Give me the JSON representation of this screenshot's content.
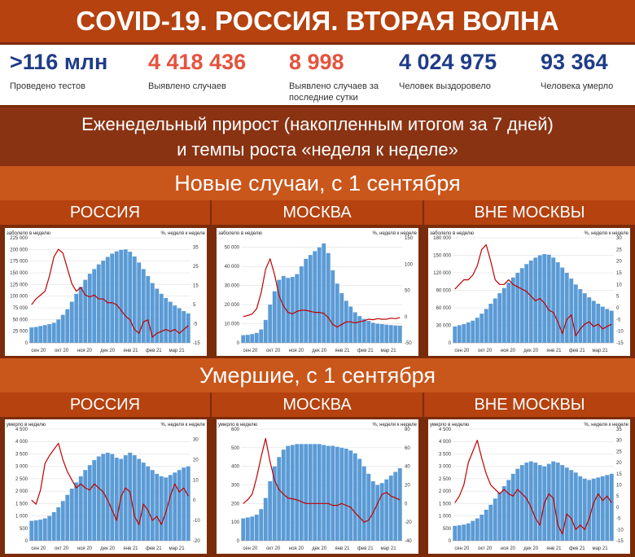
{
  "title": "COVID-19. РОССИЯ. ВТОРАЯ ВОЛНА",
  "stats": [
    {
      "value": ">116 млн",
      "label": "Проведено тестов",
      "color": "#1f3c88"
    },
    {
      "value": "4 418 436",
      "label": "Выявлено случаев",
      "color": "#e5533d"
    },
    {
      "value": "8 998",
      "label": "Выявлено случаев за последние сутки",
      "color": "#e5533d"
    },
    {
      "value": "4 024 975",
      "label": "Человек выздоровело",
      "color": "#1f3c88"
    },
    {
      "value": "93 364",
      "label": "Человека умерло",
      "color": "#1f3c88"
    }
  ],
  "weekly_line1": "Еженедельный прирост (накопленным итогом за 7 дней)",
  "weekly_line2": "и темпы роста «неделя к неделе»",
  "section_new": "Новые случаи, с 1 сентября",
  "section_deaths": "Умершие, с 1 сентября",
  "regions": [
    "РОССИЯ",
    "МОСКВА",
    "ВНЕ МОСКВЫ"
  ],
  "colors": {
    "bars": "#5b9bd5",
    "line": "#c00000"
  },
  "chart_data": [
    {
      "type": "bar+line",
      "region": "РОССИЯ",
      "metric": "Новые случаи",
      "left_axis_label": "заболело в неделю",
      "right_axis_label": "%, неделя к неделе",
      "x_labels": [
        "сен 20",
        "окт 20",
        "ноя 20",
        "дек 20",
        "янв 21",
        "фев 21",
        "мар 21"
      ],
      "left_ticks": [
        "0",
        "25 000",
        "50 000",
        "75 000",
        "100 000",
        "125 000",
        "150 000",
        "175 000",
        "200 000",
        "225 000"
      ],
      "right_ticks": [
        "-15",
        "-5",
        "5",
        "15",
        "25",
        "35"
      ],
      "ylim_left": [
        0,
        225000
      ],
      "ylim_right": [
        -15,
        40
      ],
      "bars": [
        33000,
        34000,
        36000,
        38000,
        40000,
        43000,
        50000,
        60000,
        72000,
        88000,
        105000,
        120000,
        135000,
        148000,
        158000,
        168000,
        176000,
        184000,
        191000,
        196000,
        199000,
        200000,
        195000,
        185000,
        172000,
        158000,
        143000,
        128000,
        116000,
        105000,
        96000,
        88000,
        80000,
        74000,
        68000,
        63000
      ],
      "line": [
        5,
        8,
        10,
        12,
        20,
        30,
        34,
        32,
        24,
        16,
        12,
        14,
        10,
        9,
        10,
        8,
        8,
        6,
        6,
        5,
        2,
        -1,
        -3,
        -8,
        -10,
        -4,
        -3,
        -12,
        -10,
        -9,
        -8,
        -9,
        -8,
        -10,
        -8,
        -6
      ]
    },
    {
      "type": "bar+line",
      "region": "МОСКВА",
      "metric": "Новые случаи",
      "left_axis_label": "заболело в неделю",
      "right_axis_label": "%, неделя к неделе",
      "x_labels": [
        "сен 20",
        "окт 20",
        "ноя 20",
        "дек 20",
        "янв 21",
        "фев 21",
        "мар 21"
      ],
      "left_ticks": [
        "0",
        "10 000",
        "20 000",
        "30 000",
        "40 000",
        "50 000"
      ],
      "right_ticks": [
        "-50",
        "0",
        "50",
        "100",
        "150"
      ],
      "ylim_left": [
        0,
        55000
      ],
      "ylim_right": [
        -50,
        150
      ],
      "bars": [
        4000,
        4200,
        4600,
        5200,
        7000,
        12000,
        20000,
        27000,
        33000,
        35000,
        34000,
        34500,
        36000,
        40000,
        44000,
        46000,
        48000,
        50000,
        52000,
        47000,
        38000,
        31000,
        26000,
        22000,
        19000,
        16000,
        14000,
        12500,
        11500,
        10500,
        10000,
        9800,
        9500,
        9300,
        9100,
        9000
      ],
      "line": [
        0,
        2,
        5,
        15,
        45,
        90,
        110,
        80,
        40,
        20,
        8,
        5,
        10,
        12,
        12,
        10,
        8,
        8,
        6,
        -2,
        -15,
        -20,
        -15,
        -10,
        -10,
        -12,
        -10,
        -8,
        -5,
        -6,
        -4,
        -5,
        -5,
        -3,
        -4,
        -2
      ]
    },
    {
      "type": "bar+line",
      "region": "ВНЕ МОСКВЫ",
      "metric": "Новые случаи",
      "left_axis_label": "заболело в неделю",
      "right_axis_label": "%, неделя к неделе",
      "x_labels": [
        "сен 20",
        "окт 20",
        "ноя 20",
        "дек 20",
        "янв 21",
        "фев 21",
        "мар 21"
      ],
      "left_ticks": [
        "0",
        "30 000",
        "60 000",
        "90 000",
        "120 000",
        "150 000",
        "180 000"
      ],
      "right_ticks": [
        "-15",
        "-10",
        "-5",
        "0",
        "5",
        "10",
        "15",
        "20",
        "25",
        "30"
      ],
      "ylim_left": [
        0,
        180000
      ],
      "ylim_right": [
        -15,
        30
      ],
      "bars": [
        28000,
        30000,
        32000,
        35000,
        38000,
        43000,
        50000,
        58000,
        67000,
        76000,
        85000,
        94000,
        103000,
        112000,
        120000,
        128000,
        135000,
        141000,
        146000,
        150000,
        152000,
        151000,
        146000,
        138000,
        129000,
        120000,
        110000,
        100000,
        92000,
        85000,
        78000,
        72000,
        67000,
        62000,
        58000,
        55000
      ],
      "line": [
        8,
        10,
        12,
        12,
        14,
        18,
        25,
        27,
        20,
        12,
        10,
        10,
        12,
        10,
        9,
        8,
        7,
        5,
        3,
        4,
        2,
        -1,
        -2,
        -6,
        -11,
        -5,
        -3,
        -12,
        -9,
        -7,
        -6,
        -8,
        -7,
        -9,
        -8,
        -7
      ]
    },
    {
      "type": "bar+line",
      "region": "РОССИЯ",
      "metric": "Умершие",
      "left_axis_label": "умерло в неделю",
      "right_axis_label": "%, неделя к неделе",
      "x_labels": [
        "сен 20",
        "окт 20",
        "ноя 20",
        "дек 20",
        "янв 21",
        "фев 21",
        "мар 21"
      ],
      "left_ticks": [
        "0",
        "500",
        "1 000",
        "1 500",
        "2 000",
        "2 500",
        "3 000",
        "3 500",
        "4 000",
        "4 500"
      ],
      "right_ticks": [
        "-20",
        "-10",
        "0",
        "10",
        "20",
        "30"
      ],
      "ylim_left": [
        0,
        4500
      ],
      "ylim_right": [
        -20,
        35
      ],
      "bars": [
        800,
        820,
        850,
        900,
        1000,
        1150,
        1350,
        1600,
        1850,
        2100,
        2350,
        2600,
        2850,
        3050,
        3250,
        3400,
        3500,
        3550,
        3500,
        3350,
        3300,
        3450,
        3550,
        3450,
        3300,
        3150,
        3000,
        2850,
        2700,
        2600,
        2550,
        2650,
        2750,
        2850,
        2950,
        3000
      ],
      "line": [
        0,
        -2,
        5,
        18,
        22,
        25,
        28,
        20,
        14,
        10,
        6,
        8,
        6,
        5,
        8,
        6,
        4,
        0,
        -5,
        -10,
        2,
        6,
        4,
        -8,
        -12,
        -2,
        -5,
        -10,
        -8,
        -12,
        -6,
        2,
        8,
        4,
        6,
        2
      ]
    },
    {
      "type": "bar+line",
      "region": "МОСКВА",
      "metric": "Умершие",
      "left_axis_label": "умерло в неделю",
      "right_axis_label": "%, неделя к неделе",
      "x_labels": [
        "сен 20",
        "окт 20",
        "ноя 20",
        "дек 20",
        "янв 21",
        "фев 21",
        "мар 21"
      ],
      "left_ticks": [
        "0",
        "100",
        "200",
        "300",
        "400",
        "500",
        "600"
      ],
      "right_ticks": [
        "-40",
        "-20",
        "0",
        "20",
        "40",
        "60",
        "80"
      ],
      "ylim_left": [
        0,
        600
      ],
      "ylim_right": [
        -40,
        80
      ],
      "bars": [
        120,
        125,
        130,
        140,
        170,
        230,
        320,
        400,
        450,
        490,
        510,
        515,
        520,
        520,
        520,
        520,
        520,
        520,
        515,
        510,
        510,
        505,
        500,
        495,
        485,
        470,
        440,
        400,
        360,
        320,
        300,
        310,
        330,
        350,
        370,
        390
      ],
      "line": [
        0,
        4,
        10,
        28,
        50,
        70,
        45,
        25,
        15,
        10,
        6,
        5,
        4,
        2,
        0,
        0,
        0,
        0,
        0,
        0,
        -2,
        -2,
        0,
        -2,
        -4,
        -10,
        -15,
        -20,
        -18,
        -10,
        0,
        10,
        12,
        8,
        6,
        4
      ]
    },
    {
      "type": "bar+line",
      "region": "ВНЕ МОСКВЫ",
      "metric": "Умершие",
      "left_axis_label": "умерло в неделю",
      "right_axis_label": "%, неделя к неделе",
      "x_labels": [
        "сен 20",
        "окт 20",
        "ноя 20",
        "дек 20",
        "янв 21",
        "фев 21",
        "мар 21"
      ],
      "left_ticks": [
        "0",
        "500",
        "1 000",
        "1 500",
        "2 000",
        "2 500",
        "3 000",
        "3 500",
        "4 000",
        "4 500"
      ],
      "right_ticks": [
        "-15",
        "-10",
        "-5",
        "0",
        "5",
        "10",
        "15",
        "20",
        "25",
        "30",
        "35"
      ],
      "ylim_left": [
        0,
        4500
      ],
      "ylim_right": [
        -15,
        35
      ],
      "bars": [
        600,
        620,
        650,
        700,
        800,
        900,
        1050,
        1250,
        1450,
        1700,
        1950,
        2200,
        2450,
        2700,
        2900,
        3050,
        3150,
        3200,
        3150,
        3050,
        3000,
        3100,
        3200,
        3150,
        3050,
        2950,
        2850,
        2750,
        2600,
        2500,
        2450,
        2500,
        2550,
        2600,
        2650,
        2700
      ],
      "line": [
        2,
        5,
        10,
        20,
        25,
        30,
        22,
        15,
        10,
        8,
        6,
        8,
        6,
        5,
        8,
        6,
        4,
        0,
        -5,
        -8,
        2,
        6,
        4,
        -8,
        -12,
        -3,
        -5,
        -10,
        -8,
        -10,
        -5,
        2,
        6,
        3,
        5,
        2
      ]
    }
  ]
}
